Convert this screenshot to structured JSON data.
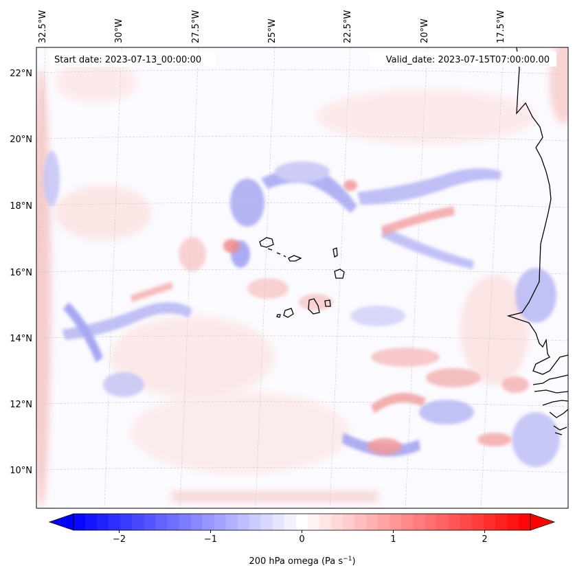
{
  "map": {
    "start_date": "2023-07-13_00:00:00",
    "valid_date": "2023-07-15T07:00:00.00",
    "lon_ticks": [
      "32.5°W",
      "30°W",
      "27.5°W",
      "25°W",
      "22.5°W",
      "20°W",
      "17.5°W"
    ],
    "lat_ticks": [
      "22°N",
      "20°N",
      "18°N",
      "16°N",
      "14°N",
      "12°N",
      "10°N"
    ],
    "colorbar": {
      "label": "200 hPa omega (Pa s",
      "label_sup": "−1",
      "label_close": ")",
      "ticks": [
        "−2",
        "−1",
        "0",
        "1",
        "2"
      ],
      "tick_values": [
        -2,
        -1,
        0,
        1,
        2
      ],
      "range": [
        -2.5,
        2.5
      ],
      "levels": 39,
      "cmap": "bwr",
      "extend": "both"
    },
    "colors": {
      "positive": "#ff0000",
      "negative": "#0000ff",
      "zero": "#ffffff",
      "coast": "#000000",
      "grid": "#c8c8c8"
    }
  }
}
